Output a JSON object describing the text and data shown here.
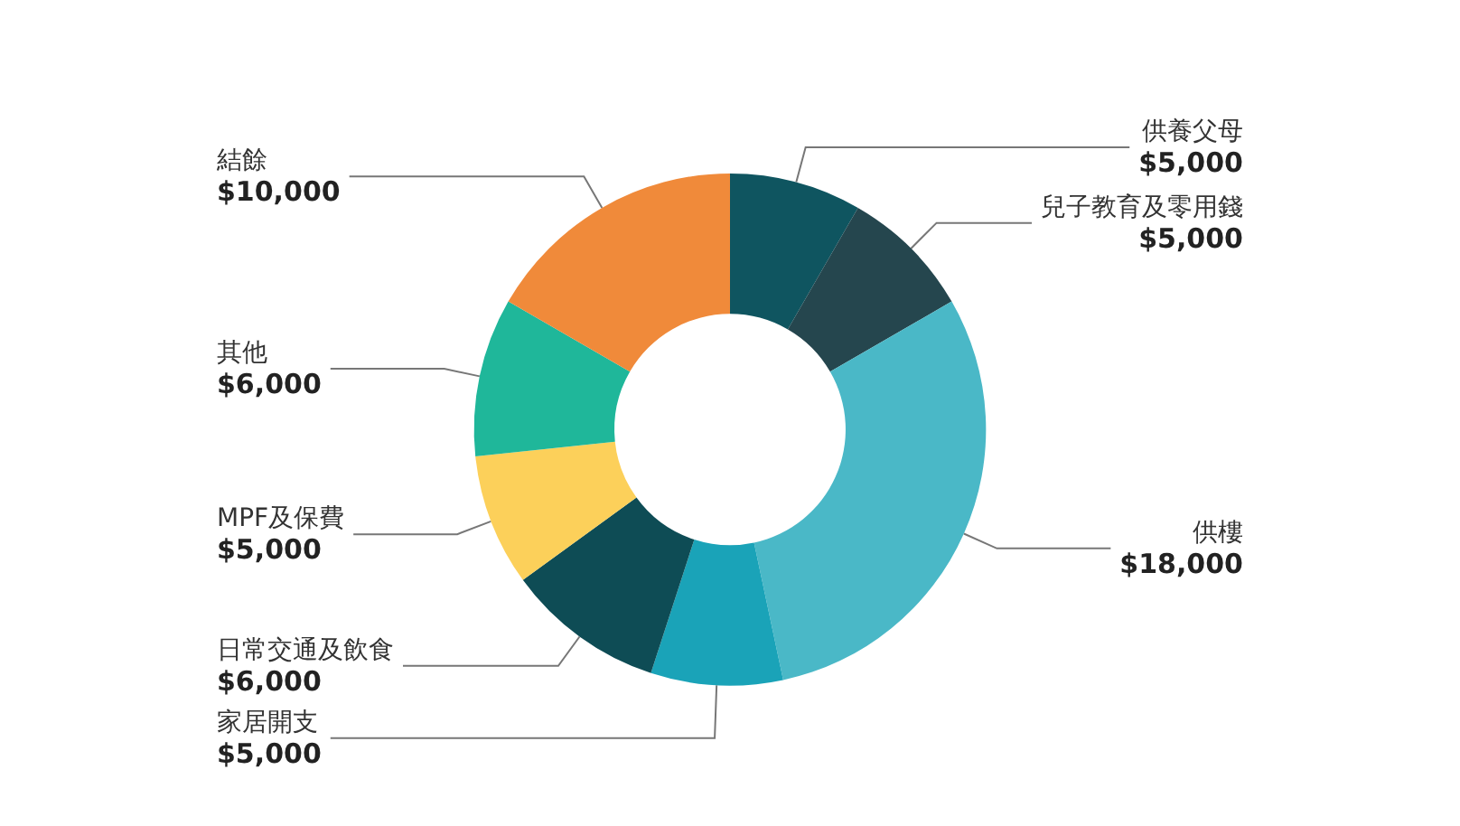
{
  "chart_data": {
    "type": "donut",
    "categories": [
      "供養父母",
      "兒子教育及零用錢",
      "供樓",
      "家居開支",
      "日常交通及飲食",
      "MPF及保費",
      "其他",
      "結餘"
    ],
    "values": [
      5000,
      5000,
      18000,
      5000,
      6000,
      5000,
      6000,
      10000
    ],
    "value_labels": [
      "$5,000",
      "$5,000",
      "$18,000",
      "$5,000",
      "$6,000",
      "$5,000",
      "$6,000",
      "$10,000"
    ],
    "colors": [
      "#0f5560",
      "#25464e",
      "#4ab8c7",
      "#1aa3b8",
      "#0e4c55",
      "#fcd05a",
      "#1fb79a",
      "#f08a3a"
    ],
    "legend": false
  }
}
